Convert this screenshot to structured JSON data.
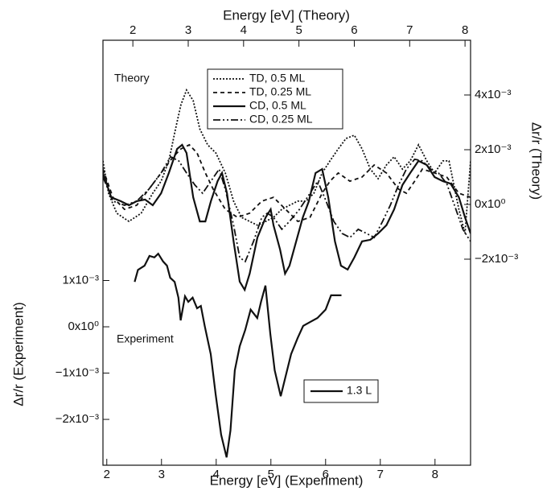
{
  "chart_data": {
    "type": "line",
    "x_label": "Energy [eV] (Experiment)",
    "x2_label": "Energy [eV] (Theory)",
    "y_label": "Δr/r (Experiment)",
    "y2_label": "Δr/r (Theory)",
    "annotations": [
      "Theory",
      "Experiment"
    ],
    "xlim": [
      1.93,
      8.65
    ],
    "xticks": [
      2,
      3,
      4,
      5,
      6,
      7,
      8
    ],
    "x2lim": [
      1.46,
      8.1
    ],
    "x2ticks": [
      2,
      3,
      4,
      5,
      6,
      7,
      8
    ],
    "ylim": [
      -0.00299,
      0.00619
    ],
    "yticks": [
      {
        "value": 0.001,
        "label": "1x10⁻³"
      },
      {
        "value": 0,
        "label": "0x10⁰"
      },
      {
        "value": -0.001,
        "label": "−1x10⁻³"
      },
      {
        "value": -0.002,
        "label": "−2x10⁻³"
      }
    ],
    "y2lim": [
      -0.00953,
      0.006
    ],
    "y2ticks": [
      {
        "value": 0.004,
        "label": "4x10⁻³"
      },
      {
        "value": 0.002,
        "label": "2x10⁻³"
      },
      {
        "value": 0,
        "label": "0x10⁰"
      },
      {
        "value": -0.002,
        "label": "−2x10⁻³"
      }
    ],
    "series": [
      {
        "name": "TD, 0.5 ML",
        "color": "#111111",
        "style": "dotted",
        "axis": "y2",
        "x": [
          1.46,
          1.56,
          1.71,
          1.93,
          2.15,
          2.36,
          2.51,
          2.65,
          2.77,
          2.87,
          2.97,
          3.09,
          3.21,
          3.35,
          3.5,
          3.67,
          3.82,
          3.96,
          4.11,
          4.25,
          4.4,
          4.54,
          4.69,
          4.83,
          4.98,
          5.13,
          5.27,
          5.42,
          5.56,
          5.71,
          5.85,
          6.0,
          6.14,
          6.29,
          6.43,
          6.58,
          6.72,
          6.87,
          7.01,
          7.16,
          7.31,
          7.45,
          7.6,
          7.71,
          7.89,
          8.0,
          8.1
        ],
        "values": [
          0.00159,
          0.00041,
          -0.00032,
          -0.00062,
          -0.00032,
          0.00041,
          0.00085,
          0.00159,
          0.00276,
          0.00365,
          0.00418,
          0.00379,
          0.00276,
          0.00218,
          0.00188,
          0.00115,
          0.00012,
          -0.00047,
          -0.00062,
          -0.00076,
          -0.00062,
          -0.00047,
          -0.00018,
          -3e-05,
          0.00012,
          0.00012,
          0.00041,
          0.00115,
          0.00159,
          0.00203,
          0.00241,
          0.00253,
          0.00203,
          0.00129,
          0.00094,
          0.00144,
          0.00174,
          0.00129,
          0.00159,
          0.00218,
          0.00159,
          0.00115,
          0.00159,
          0.00159,
          -0.00018,
          -0.00106,
          0.00159
        ]
      },
      {
        "name": "TD, 0.25 ML",
        "color": "#111111",
        "style": "dashed",
        "axis": "y2",
        "x": [
          1.46,
          1.64,
          1.85,
          2.07,
          2.29,
          2.51,
          2.73,
          2.87,
          3.02,
          3.16,
          3.31,
          3.45,
          3.67,
          3.89,
          4.11,
          4.33,
          4.54,
          4.76,
          4.98,
          5.2,
          5.42,
          5.56,
          5.71,
          5.92,
          6.14,
          6.36,
          6.58,
          6.8,
          6.94,
          7.09,
          7.23,
          7.45,
          7.67,
          7.89,
          8.1
        ],
        "values": [
          0.00129,
          0.00026,
          -0.00018,
          -3e-05,
          0.00056,
          0.00115,
          0.00174,
          0.00203,
          0.00218,
          0.00188,
          0.00115,
          0.00056,
          -0.00018,
          -0.00047,
          -0.00032,
          0.00012,
          0.00026,
          -0.00018,
          -0.00062,
          -0.00047,
          0.00041,
          0.00085,
          0.00115,
          0.00085,
          0.001,
          0.00144,
          0.00115,
          0.00056,
          0.00041,
          0.00085,
          0.00129,
          0.00115,
          0.001,
          0.00041,
          0.00026
        ]
      },
      {
        "name": "CD, 0.5 ML",
        "color": "#111111",
        "style": "solid",
        "axis": "y2",
        "x": [
          1.46,
          1.61,
          1.78,
          1.93,
          2.07,
          2.22,
          2.36,
          2.51,
          2.65,
          2.8,
          2.89,
          2.97,
          3.09,
          3.21,
          3.31,
          3.41,
          3.53,
          3.61,
          3.7,
          3.82,
          3.93,
          4.02,
          4.11,
          4.25,
          4.4,
          4.49,
          4.54,
          4.66,
          4.75,
          4.83,
          4.95,
          5.07,
          5.18,
          5.3,
          5.42,
          5.53,
          5.65,
          5.76,
          5.88,
          6.0,
          6.14,
          6.29,
          6.43,
          6.58,
          6.72,
          6.87,
          7.01,
          7.16,
          7.31,
          7.45,
          7.6,
          7.74,
          7.89,
          8.0,
          8.1
        ],
        "values": [
          0.00115,
          0.00026,
          0.00012,
          -3e-05,
          0.00012,
          0.00018,
          -3e-05,
          0.00041,
          0.00115,
          0.00203,
          0.00218,
          0.00188,
          0.00026,
          -0.00062,
          -0.00062,
          0.00012,
          0.00085,
          0.00115,
          0.00041,
          -0.00135,
          -0.00282,
          -0.00312,
          -0.00253,
          -0.00121,
          -0.00047,
          -0.00018,
          -0.00076,
          -0.00165,
          -0.00253,
          -0.00224,
          -0.00135,
          -0.00047,
          0.00012,
          0.00115,
          0.00129,
          0.00026,
          -0.00135,
          -0.00224,
          -0.00238,
          -0.00194,
          -0.00135,
          -0.00129,
          -0.00106,
          -0.00076,
          -0.00018,
          0.00071,
          0.00115,
          0.00159,
          0.00144,
          0.001,
          0.00085,
          0.00076,
          0.00026,
          -0.00047,
          -0.00106
        ]
      },
      {
        "name": "CD, 0.25 ML",
        "color": "#111111",
        "style": "dashdotdot",
        "axis": "y2",
        "x": [
          1.46,
          1.64,
          1.85,
          2.07,
          2.29,
          2.51,
          2.68,
          2.83,
          2.97,
          3.12,
          3.26,
          3.41,
          3.56,
          3.67,
          3.82,
          3.93,
          4.03,
          4.18,
          4.33,
          4.43,
          4.54,
          4.69,
          4.83,
          5.01,
          5.2,
          5.34,
          5.49,
          5.63,
          5.78,
          5.92,
          6.07,
          6.22,
          6.36,
          6.51,
          6.65,
          6.8,
          6.94,
          7.09,
          7.23,
          7.38,
          7.52,
          7.67,
          7.81,
          7.96,
          8.1
        ],
        "values": [
          0.001,
          0.00012,
          -3e-05,
          0.00012,
          0.00056,
          0.00115,
          0.00174,
          0.00159,
          0.00115,
          0.00071,
          0.00041,
          0.00085,
          0.00129,
          0.00056,
          -0.00076,
          -0.00194,
          -0.00209,
          -0.00135,
          -0.00047,
          -0.00032,
          -0.00047,
          -0.00091,
          -0.00062,
          -0.00018,
          0.00041,
          0.00085,
          0.00012,
          -0.00062,
          -0.00106,
          -0.00121,
          -0.00091,
          -0.00106,
          -0.00121,
          -0.00062,
          -3e-05,
          0.00071,
          0.00129,
          0.00165,
          0.00159,
          0.00129,
          0.00115,
          0.00076,
          -3e-05,
          -0.00091,
          -0.00135
        ]
      },
      {
        "name": "1.3 L",
        "color": "#111111",
        "style": "solid",
        "axis": "y",
        "x": [
          2.51,
          2.57,
          2.69,
          2.78,
          2.87,
          2.94,
          3.03,
          3.1,
          3.16,
          3.24,
          3.31,
          3.35,
          3.43,
          3.49,
          3.57,
          3.65,
          3.72,
          3.79,
          3.9,
          3.99,
          4.09,
          4.19,
          4.26,
          4.34,
          4.43,
          4.53,
          4.63,
          4.75,
          4.82,
          4.9,
          4.99,
          5.07,
          5.18,
          5.26,
          5.37,
          5.49,
          5.59,
          5.71,
          5.85,
          6.0,
          6.1,
          6.29
        ],
        "values": [
          0.00097,
          0.00123,
          0.00132,
          0.00153,
          0.0015,
          0.00158,
          0.00141,
          0.00132,
          0.00106,
          0.00097,
          0.00063,
          0.00014,
          0.00066,
          0.00054,
          0.00063,
          0.0004,
          0.00045,
          2e-05,
          -0.00059,
          -0.00146,
          -0.00233,
          -0.00282,
          -0.00224,
          -0.00094,
          -0.00042,
          -7e-05,
          0.00037,
          0.00019,
          0.00054,
          0.00089,
          -0.00016,
          -0.00094,
          -0.0015,
          -0.00111,
          -0.00059,
          -0.00024,
          2e-05,
          0.0001,
          0.00019,
          0.00037,
          0.00068,
          0.00068
        ]
      }
    ]
  }
}
